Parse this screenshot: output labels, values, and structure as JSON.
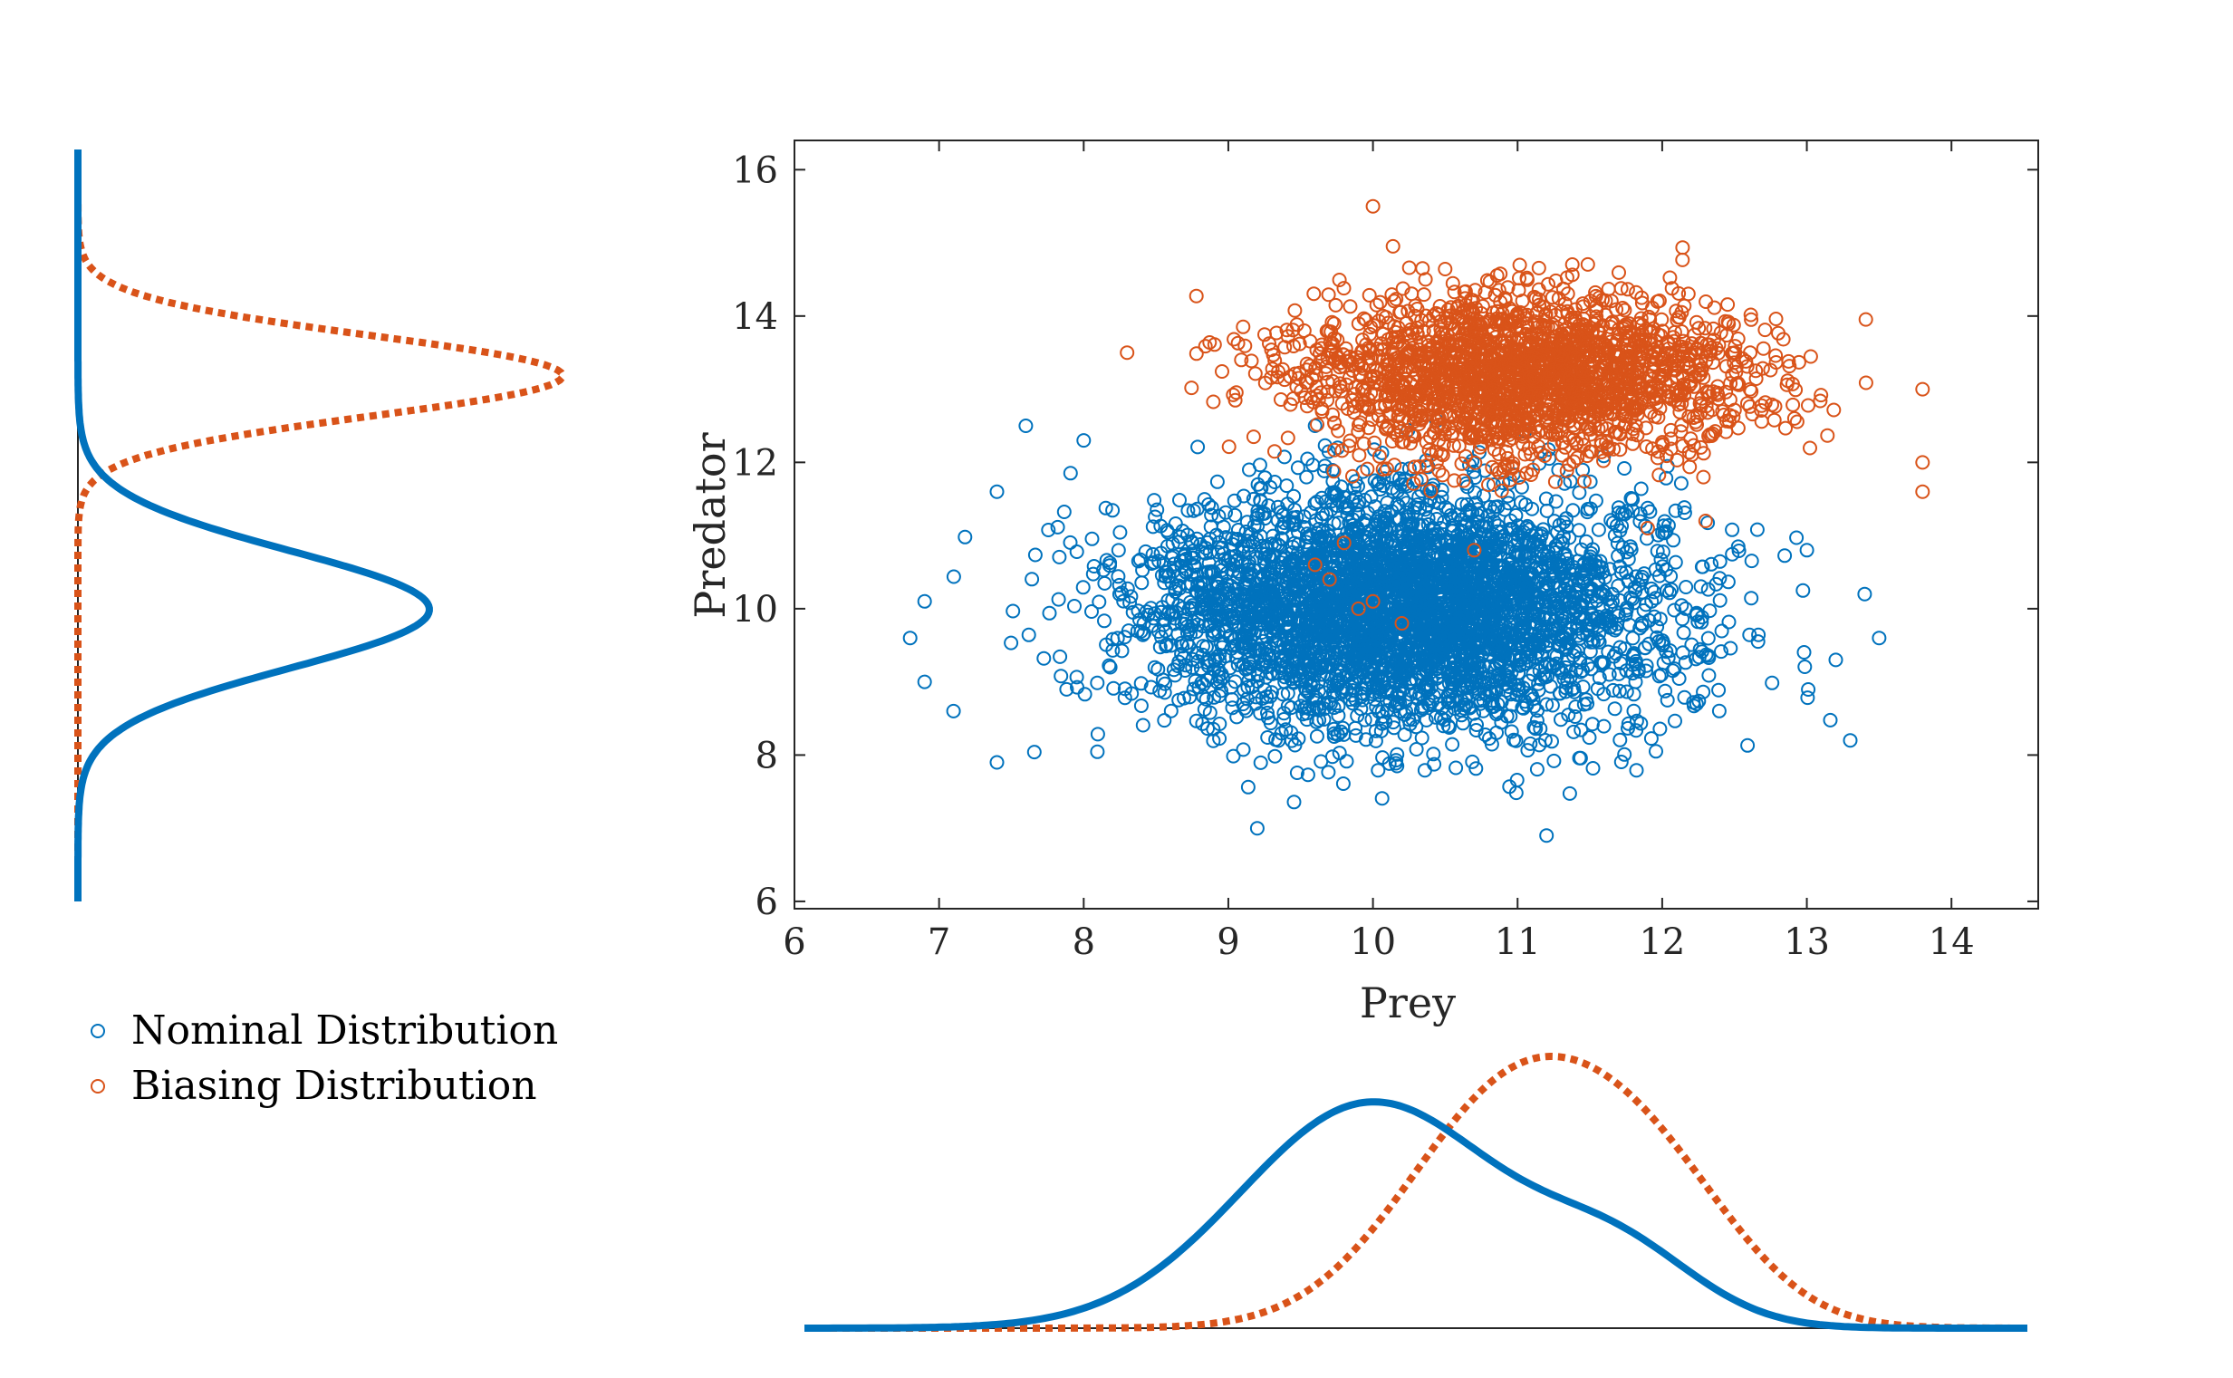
{
  "chart_data": {
    "type": "scatter",
    "title": "",
    "xlabel": "Prey",
    "ylabel": "Predator",
    "xlim": [
      6,
      14.6
    ],
    "ylim": [
      5.9,
      16.4
    ],
    "xticks": [
      6,
      7,
      8,
      9,
      10,
      11,
      12,
      13,
      14
    ],
    "yticks": [
      6,
      8,
      10,
      12,
      14,
      16
    ],
    "grid": false,
    "colors": {
      "nominal": "#0072BD",
      "biasing": "#D95319",
      "axis": "#262626"
    },
    "legend": {
      "placement": "bottom-left",
      "entries": [
        "Nominal Distribution",
        "Biasing Distribution"
      ]
    },
    "series": [
      {
        "name": "Nominal Distribution",
        "marker": "circle-open",
        "count": 4000,
        "seed": 7,
        "mean": [
          10.2,
          10.0
        ],
        "sd": [
          0.9,
          0.8
        ],
        "bounds": {
          "x": [
            6.8,
            13.6
          ],
          "y": [
            6.9,
            12.6
          ]
        },
        "outliers": [
          [
            6.8,
            9.6
          ],
          [
            6.9,
            9.0
          ],
          [
            6.9,
            10.1
          ],
          [
            7.1,
            8.6
          ],
          [
            7.4,
            7.9
          ],
          [
            7.6,
            12.5
          ],
          [
            13.3,
            8.2
          ],
          [
            13.5,
            9.6
          ],
          [
            13.4,
            10.2
          ],
          [
            13.2,
            9.3
          ],
          [
            11.2,
            6.9
          ],
          [
            9.2,
            7.0
          ],
          [
            8.0,
            12.3
          ],
          [
            9.6,
            12.5
          ],
          [
            13.0,
            10.8
          ],
          [
            7.4,
            11.6
          ]
        ]
      },
      {
        "name": "Biasing Distribution",
        "marker": "circle-open",
        "count": 2100,
        "seed": 19,
        "mean": [
          11.05,
          13.2
        ],
        "sd": [
          0.75,
          0.55
        ],
        "bounds": {
          "x": [
            8.2,
            13.9
          ],
          "y": [
            11.5,
            15.5
          ]
        },
        "outliers": [
          [
            8.3,
            13.5
          ],
          [
            10.0,
            15.5
          ],
          [
            13.8,
            11.6
          ],
          [
            13.8,
            12.0
          ],
          [
            13.8,
            13.0
          ],
          [
            9.6,
            10.6
          ],
          [
            9.8,
            10.9
          ],
          [
            10.0,
            10.1
          ],
          [
            9.7,
            10.4
          ],
          [
            10.7,
            10.8
          ],
          [
            10.2,
            9.8
          ],
          [
            9.9,
            10.0
          ],
          [
            11.9,
            11.1
          ],
          [
            12.3,
            11.2
          ]
        ]
      }
    ],
    "marginal_x": {
      "x_range": [
        6.1,
        14.5
      ],
      "nominal": {
        "components": [
          [
            0.85,
            10.0,
            0.9
          ],
          [
            0.15,
            11.7,
            0.55
          ]
        ]
      },
      "biasing": {
        "components": [
          [
            0.75,
            11.0,
            0.75
          ],
          [
            0.25,
            12.0,
            0.6
          ]
        ]
      }
    },
    "marginal_y": {
      "y_range": [
        6.0,
        16.3
      ],
      "nominal": {
        "components": [
          [
            1.0,
            10.0,
            0.8
          ]
        ]
      },
      "biasing": {
        "components": [
          [
            1.0,
            13.2,
            0.55
          ]
        ]
      }
    }
  }
}
